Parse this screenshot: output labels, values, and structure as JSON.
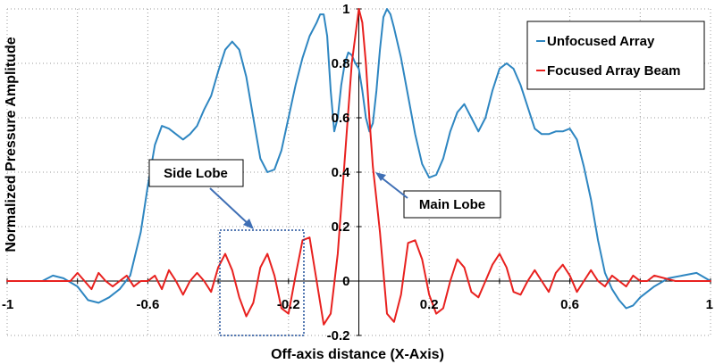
{
  "chart_data": {
    "type": "line",
    "title": "",
    "xlabel": "Off-axis distance (X-Axis)",
    "ylabel": "Normalized Pressure Amplitude",
    "xlim": [
      -1,
      1
    ],
    "ylim": [
      -0.2,
      1
    ],
    "x_tick_labels": [
      "-1",
      "-0.6",
      "-0.2",
      "0.2",
      "0.6",
      "1"
    ],
    "x_ticks": [
      -1,
      -0.6,
      -0.2,
      0.2,
      0.6,
      1
    ],
    "y_tick_labels": [
      "-0.2",
      "0",
      "0.2",
      "0.4",
      "0.6",
      "0.8",
      "1"
    ],
    "y_ticks": [
      -0.2,
      0,
      0.2,
      0.4,
      0.6,
      0.8,
      1
    ],
    "grid": "dotted",
    "legend_position": "top-right",
    "series": [
      {
        "name": "Unfocused Array",
        "color": "#2e86c1",
        "x": [
          -1.0,
          -0.95,
          -0.9,
          -0.87,
          -0.84,
          -0.8,
          -0.77,
          -0.74,
          -0.71,
          -0.68,
          -0.65,
          -0.62,
          -0.6,
          -0.58,
          -0.56,
          -0.54,
          -0.52,
          -0.5,
          -0.48,
          -0.46,
          -0.44,
          -0.42,
          -0.4,
          -0.38,
          -0.36,
          -0.34,
          -0.32,
          -0.3,
          -0.28,
          -0.26,
          -0.24,
          -0.22,
          -0.2,
          -0.18,
          -0.16,
          -0.14,
          -0.12,
          -0.11,
          -0.1,
          -0.09,
          -0.08,
          -0.07,
          -0.06,
          -0.05,
          -0.04,
          -0.03,
          -0.02,
          -0.01,
          0.0,
          0.01,
          0.02,
          0.03,
          0.04,
          0.05,
          0.06,
          0.07,
          0.08,
          0.09,
          0.1,
          0.12,
          0.14,
          0.16,
          0.18,
          0.2,
          0.22,
          0.24,
          0.26,
          0.28,
          0.3,
          0.32,
          0.34,
          0.36,
          0.38,
          0.4,
          0.42,
          0.44,
          0.46,
          0.48,
          0.5,
          0.52,
          0.54,
          0.56,
          0.58,
          0.6,
          0.62,
          0.64,
          0.66,
          0.68,
          0.7,
          0.72,
          0.74,
          0.76,
          0.78,
          0.8,
          0.84,
          0.88,
          0.92,
          0.96,
          1.0
        ],
        "y": [
          0.0,
          0.0,
          0.0,
          0.02,
          0.01,
          -0.02,
          -0.07,
          -0.08,
          -0.06,
          -0.03,
          0.02,
          0.18,
          0.35,
          0.5,
          0.57,
          0.56,
          0.54,
          0.52,
          0.54,
          0.57,
          0.63,
          0.68,
          0.77,
          0.85,
          0.88,
          0.85,
          0.75,
          0.6,
          0.45,
          0.4,
          0.41,
          0.48,
          0.6,
          0.72,
          0.82,
          0.9,
          0.95,
          0.98,
          0.98,
          0.9,
          0.7,
          0.55,
          0.6,
          0.72,
          0.8,
          0.84,
          0.83,
          0.8,
          0.78,
          0.7,
          0.6,
          0.55,
          0.58,
          0.7,
          0.85,
          0.97,
          1.0,
          0.98,
          0.93,
          0.82,
          0.68,
          0.54,
          0.43,
          0.38,
          0.39,
          0.45,
          0.55,
          0.62,
          0.65,
          0.6,
          0.55,
          0.6,
          0.7,
          0.78,
          0.8,
          0.78,
          0.72,
          0.64,
          0.56,
          0.54,
          0.54,
          0.55,
          0.55,
          0.56,
          0.52,
          0.42,
          0.3,
          0.15,
          0.03,
          -0.03,
          -0.07,
          -0.1,
          -0.09,
          -0.06,
          -0.02,
          0.01,
          0.02,
          0.03,
          0.0
        ]
      },
      {
        "name": "Focused Array Beam",
        "color": "#e8211f",
        "x": [
          -1.0,
          -0.9,
          -0.82,
          -0.8,
          -0.78,
          -0.76,
          -0.74,
          -0.72,
          -0.7,
          -0.68,
          -0.66,
          -0.64,
          -0.62,
          -0.6,
          -0.58,
          -0.56,
          -0.54,
          -0.52,
          -0.5,
          -0.48,
          -0.46,
          -0.44,
          -0.42,
          -0.4,
          -0.38,
          -0.36,
          -0.34,
          -0.32,
          -0.3,
          -0.28,
          -0.26,
          -0.24,
          -0.22,
          -0.2,
          -0.18,
          -0.16,
          -0.14,
          -0.12,
          -0.1,
          -0.08,
          -0.06,
          -0.04,
          -0.02,
          0.0,
          0.01,
          0.02,
          0.03,
          0.04,
          0.05,
          0.06,
          0.08,
          0.1,
          0.12,
          0.14,
          0.16,
          0.18,
          0.2,
          0.22,
          0.24,
          0.26,
          0.28,
          0.3,
          0.32,
          0.34,
          0.36,
          0.38,
          0.4,
          0.42,
          0.44,
          0.46,
          0.48,
          0.5,
          0.52,
          0.54,
          0.56,
          0.58,
          0.6,
          0.62,
          0.64,
          0.66,
          0.68,
          0.7,
          0.72,
          0.74,
          0.76,
          0.78,
          0.8,
          0.82,
          0.84,
          0.9,
          1.0
        ],
        "y": [
          0.0,
          0.0,
          0.0,
          0.03,
          0.0,
          -0.03,
          0.03,
          0.0,
          -0.02,
          0.0,
          0.02,
          -0.02,
          0.0,
          0.0,
          0.02,
          -0.03,
          0.04,
          0.0,
          -0.05,
          0.0,
          0.03,
          0.0,
          -0.04,
          0.05,
          0.1,
          0.04,
          -0.06,
          -0.13,
          -0.08,
          0.05,
          0.1,
          0.02,
          -0.1,
          -0.12,
          0.02,
          0.15,
          0.16,
          0.0,
          -0.16,
          -0.12,
          0.1,
          0.45,
          0.8,
          1.0,
          0.95,
          0.8,
          0.6,
          0.42,
          0.3,
          0.18,
          -0.12,
          -0.15,
          -0.05,
          0.14,
          0.15,
          0.08,
          -0.05,
          -0.12,
          -0.1,
          0.0,
          0.08,
          0.05,
          -0.04,
          -0.06,
          0.0,
          0.06,
          0.1,
          0.05,
          -0.04,
          -0.05,
          0.0,
          0.04,
          0.0,
          -0.04,
          0.03,
          0.06,
          0.02,
          -0.04,
          0.0,
          0.04,
          0.0,
          -0.02,
          0.02,
          0.0,
          -0.02,
          0.02,
          0.0,
          0.0,
          0.02,
          0.0,
          0.0
        ]
      }
    ],
    "annotations": [
      {
        "id": "side-lobe",
        "text": "Side Lobe"
      },
      {
        "id": "main-lobe",
        "text": "Main Lobe"
      }
    ]
  }
}
